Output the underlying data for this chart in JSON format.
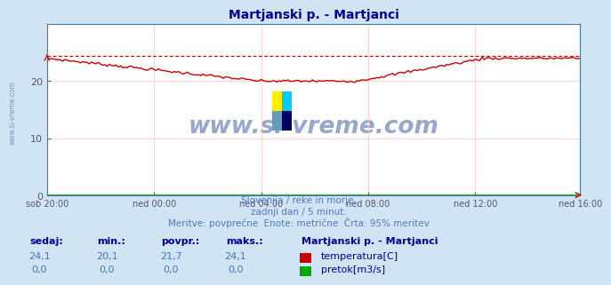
{
  "title": "Martjanski p. - Martjanci",
  "title_color": "#000099",
  "bg_color": "#d0e4f4",
  "plot_bg_color": "#ffffff",
  "grid_color": "#ffcccc",
  "grid_lw": 0.6,
  "x_tick_labels": [
    "sob 20:00",
    "ned 00:00",
    "ned 04:00",
    "ned 08:00",
    "ned 12:00",
    "ned 16:00"
  ],
  "x_tick_positions": [
    0,
    48,
    96,
    144,
    192,
    239
  ],
  "y_ticks": [
    0,
    10,
    20
  ],
  "ylim": [
    0,
    30
  ],
  "xlim": [
    0,
    239
  ],
  "dashed_line_y": 24.4,
  "dashed_line_color": "#cc0000",
  "line_color": "#cc0000",
  "pretok_color": "#00aa00",
  "subtitle1": "Slovenija / reke in morje.",
  "subtitle2": "zadnji dan / 5 minut.",
  "subtitle3": "Meritve: povprečne  Enote: metrične  Črta: 95% meritev",
  "subtitle_color": "#5577bb",
  "watermark": "www.si-vreme.com",
  "watermark_color": "#1a3f8f",
  "legend_title": "Martjanski p. - Martjanci",
  "legend_title_color": "#000099",
  "legend_color": "#000099",
  "label_headers": [
    "sedaj:",
    "min.:",
    "povpr.:",
    "maks.:"
  ],
  "label_values_temp": [
    "24,1",
    "20,1",
    "21,7",
    "24,1"
  ],
  "label_values_pretok": [
    "0,0",
    "0,0",
    "0,0",
    "0,0"
  ],
  "label_text_color": "#4477bb",
  "label_header_color": "#000099",
  "temp_legend_label": "temperatura[C]",
  "pretok_legend_label": "pretok[m3/s]",
  "temp_box_color": "#cc0000",
  "pretok_box_color": "#00aa00",
  "logo_colors": [
    "#ffee00",
    "#00ccff",
    "#6699bb",
    "#000066"
  ],
  "left_label_color": "#7799bb",
  "spine_color": "#4477aa",
  "arrow_color": "#cc2222"
}
